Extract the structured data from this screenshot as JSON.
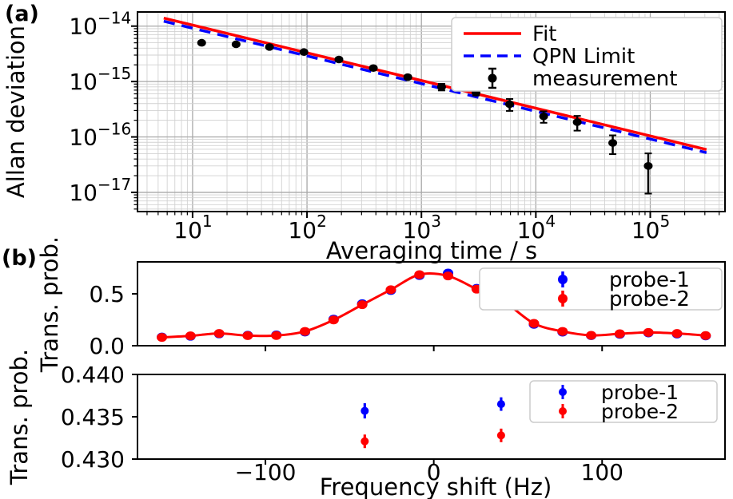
{
  "figure": {
    "panel_a_tag": "(a)",
    "panel_b_tag": "(b)",
    "colors": {
      "fit_red": "#ff0000",
      "qpn_blue": "#0000ff",
      "measurement_black": "#000000",
      "probe1_blue": "#0000ff",
      "probe2_red": "#ff0000",
      "grid_major": "#a8a8a8",
      "grid_minor": "#d2d2d2",
      "axis": "#000000",
      "legend_border": "#cccccc"
    }
  },
  "chart_data": [
    {
      "id": "allan-deviation",
      "type": "line",
      "title": "",
      "xlabel": "Averaging time / s",
      "ylabel": "Allan deviation",
      "xscale": "log",
      "yscale": "log",
      "xlim": [
        3.3,
        450000
      ],
      "ylim": [
        4.5e-18,
        1.8e-14
      ],
      "grid": true,
      "legend_position": "upper right",
      "x_tick_exponents": [
        1,
        2,
        3,
        4,
        5
      ],
      "y_tick_exponents": [
        -14,
        -15,
        -16,
        -17
      ],
      "series": [
        {
          "name": "Fit",
          "style": "solid",
          "color": "#ff0000",
          "model": "coeff * tau^-0.5",
          "coeff": 3.3e-14,
          "x_range": [
            5.6,
            310000
          ]
        },
        {
          "name": "QPN Limit",
          "style": "dashed",
          "color": "#0000ff",
          "model": "coeff * tau^-0.5",
          "coeff": 2.9e-14,
          "x_range": [
            5.6,
            310000
          ]
        },
        {
          "name": "measurement",
          "style": "scatter",
          "color": "#000000",
          "tau": [
            12,
            24,
            47,
            94,
            190,
            380,
            760,
            1500,
            3000,
            5900,
            11700,
            23000,
            47000,
            96000
          ],
          "adev": [
            5e-15,
            4.7e-15,
            4.2e-15,
            3.4e-15,
            2.5e-15,
            1.75e-15,
            1.2e-15,
            8e-16,
            6.3e-16,
            3.9e-16,
            2.35e-16,
            1.85e-16,
            7.8e-17,
            3e-17
          ],
          "err": [
            2.5e-16,
            2.5e-16,
            2.2e-16,
            1.8e-16,
            1.4e-16,
            1.1e-16,
            9e-17,
            1.1e-16,
            7e-17,
            9.5e-17,
            5.5e-17,
            5.5e-17,
            2.9e-17,
            2.05e-17
          ]
        }
      ]
    },
    {
      "id": "spectroscopy-scan",
      "type": "scatter",
      "title": "",
      "xlabel": "",
      "ylabel": "Trans. prob.",
      "xlim": [
        -176,
        173
      ],
      "ylim": [
        0,
        0.808
      ],
      "grid": false,
      "y_ticks": [
        0.0,
        0.5
      ],
      "y_tick_labels": [
        "0.0",
        "0.5"
      ],
      "x_ticks": [
        -100,
        0,
        100
      ],
      "legend": [
        "probe-1",
        "probe-2"
      ],
      "x": [
        -161.5,
        -144.5,
        -127.5,
        -110.5,
        -93.5,
        -76.5,
        -59.5,
        -42.5,
        -25.5,
        -8.5,
        8.5,
        25.5,
        42.5,
        59.5,
        76.5,
        93.5,
        110.5,
        127.5,
        144.5,
        161.5
      ],
      "probe1_y": [
        0.084,
        0.091,
        0.114,
        0.101,
        0.104,
        0.132,
        0.256,
        0.405,
        0.532,
        0.676,
        0.7,
        0.553,
        0.425,
        0.206,
        0.131,
        0.097,
        0.11,
        0.123,
        0.113,
        0.094
      ],
      "probe2_y": [
        0.08,
        0.095,
        0.118,
        0.097,
        0.098,
        0.138,
        0.248,
        0.395,
        0.54,
        0.685,
        0.672,
        0.545,
        0.415,
        0.215,
        0.138,
        0.1,
        0.115,
        0.128,
        0.118,
        0.098
      ],
      "line_through": "probe2"
    },
    {
      "id": "probe-comparison",
      "type": "scatter",
      "title": "",
      "xlabel": "Frequency shift (Hz)",
      "ylabel": "Trans. prob.",
      "xlim": [
        -176,
        173
      ],
      "ylim": [
        0.43,
        0.44
      ],
      "grid": false,
      "y_ticks": [
        0.43,
        0.435,
        0.44
      ],
      "y_tick_labels": [
        "0.430",
        "0.435",
        "0.440"
      ],
      "x_ticks": [
        -100,
        0,
        100
      ],
      "x_tick_labels": [
        "−100",
        "0",
        "100"
      ],
      "legend": [
        "probe-1",
        "probe-2"
      ],
      "probe1": {
        "x": [
          -41,
          40
        ],
        "y": [
          0.4357,
          0.4365
        ],
        "err": [
          0.0009,
          0.0008
        ]
      },
      "probe2": {
        "x": [
          -41,
          40
        ],
        "y": [
          0.4321,
          0.4328
        ],
        "err": [
          0.0008,
          0.0008
        ]
      }
    }
  ]
}
